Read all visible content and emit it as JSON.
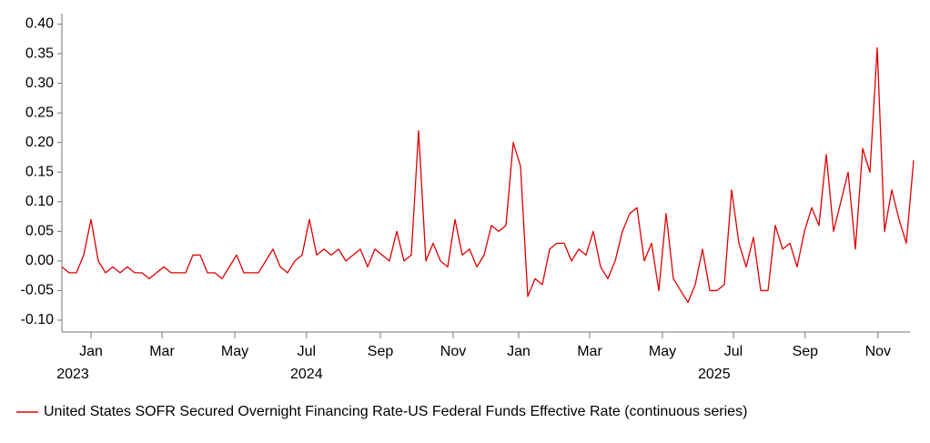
{
  "chart_data": {
    "type": "line",
    "series": [
      {
        "name": "United States SOFR Secured Overnight Financing Rate-US Federal Funds Effective Rate (continuous series)",
        "color": "#e00000",
        "values": [
          -0.01,
          -0.02,
          -0.02,
          0.01,
          0.07,
          0.0,
          -0.02,
          -0.01,
          -0.02,
          -0.01,
          -0.02,
          -0.02,
          -0.03,
          -0.02,
          -0.01,
          -0.02,
          -0.02,
          -0.02,
          0.01,
          0.01,
          -0.02,
          -0.02,
          -0.03,
          -0.01,
          0.01,
          -0.02,
          -0.02,
          -0.02,
          0.0,
          0.02,
          -0.01,
          -0.02,
          0.0,
          0.01,
          0.07,
          0.01,
          0.02,
          0.01,
          0.02,
          0.0,
          0.01,
          0.02,
          -0.01,
          0.02,
          0.01,
          0.0,
          0.05,
          0.0,
          0.01,
          0.22,
          0.0,
          0.03,
          0.0,
          -0.01,
          0.07,
          0.01,
          0.02,
          -0.01,
          0.01,
          0.06,
          0.05,
          0.06,
          0.2,
          0.16,
          -0.06,
          -0.03,
          -0.04,
          0.02,
          0.03,
          0.03,
          0.0,
          0.02,
          0.01,
          0.05,
          -0.01,
          -0.03,
          0.0,
          0.05,
          0.08,
          0.09,
          0.0,
          0.03,
          -0.05,
          0.08,
          -0.03,
          -0.05,
          -0.07,
          -0.04,
          0.02,
          -0.05,
          -0.05,
          -0.04,
          0.12,
          0.03,
          -0.01,
          0.04,
          -0.05,
          -0.05,
          0.06,
          0.02,
          0.03,
          -0.01,
          0.05,
          0.09,
          0.06,
          0.18,
          0.05,
          0.1,
          0.15,
          0.02,
          0.19,
          0.15,
          0.36,
          0.05,
          0.12,
          0.07,
          0.03,
          0.17
        ]
      }
    ],
    "xlim": [
      0,
      117
    ],
    "xticks": [
      {
        "value": 4,
        "label": "Jan"
      },
      {
        "value": 13.75,
        "label": "Mar"
      },
      {
        "value": 23.75,
        "label": "May"
      },
      {
        "value": 33.6,
        "label": "Jul"
      },
      {
        "value": 43.75,
        "label": "Sep"
      },
      {
        "value": 53.75,
        "label": "Nov"
      },
      {
        "value": 62.75,
        "label": "Jan"
      },
      {
        "value": 72.5,
        "label": "Mar"
      },
      {
        "value": 82.5,
        "label": "May"
      },
      {
        "value": 92.25,
        "label": "Jul"
      },
      {
        "value": 102.1,
        "label": "Sep"
      },
      {
        "value": 112.1,
        "label": "Nov"
      }
    ],
    "year_labels": [
      {
        "value": 1.5,
        "label": "2023"
      },
      {
        "value": 33.6,
        "label": "2024"
      },
      {
        "value": 89.6,
        "label": "2025"
      }
    ],
    "ylim": [
      -0.12,
      0.41
    ],
    "yticks": [
      {
        "value": 0.4,
        "label": "0.40"
      },
      0.35,
      {
        "value": 0.3,
        "label": "0.30"
      },
      0.25,
      {
        "value": 0.2,
        "label": "0.20"
      },
      0.15,
      {
        "value": 0.1,
        "label": "0.10"
      },
      0.05,
      {
        "value": 0,
        "label": "0.00"
      },
      -0.05,
      {
        "value": -0.1,
        "label": "-0.10"
      }
    ],
    "legend": "bottom-left"
  }
}
